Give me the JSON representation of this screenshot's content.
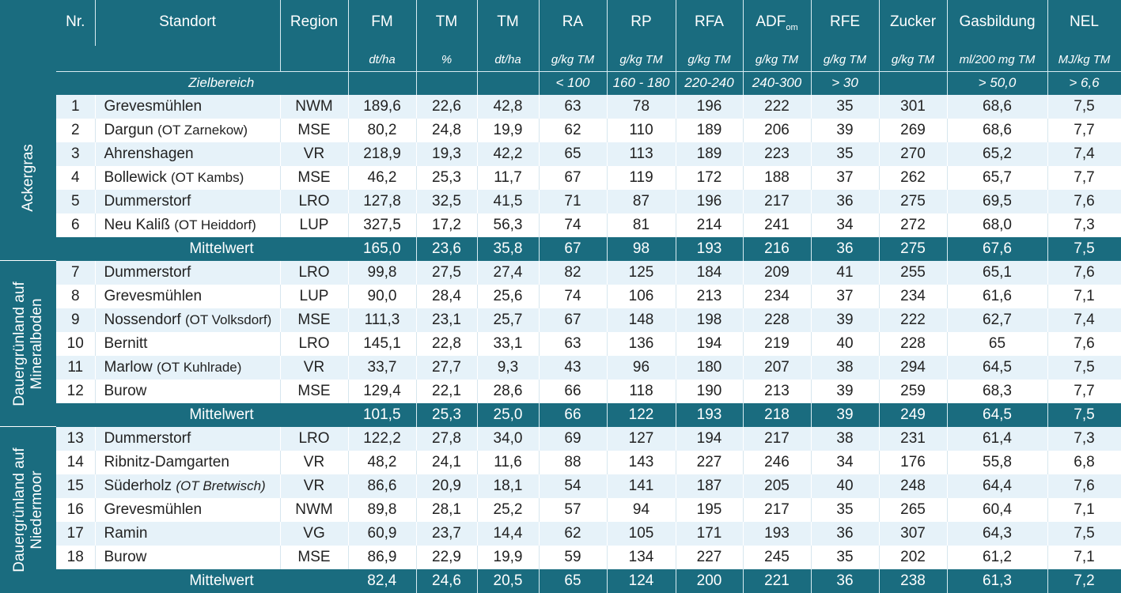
{
  "headers": {
    "nr": "Nr.",
    "standort": "Standort",
    "region": "Region",
    "fm": "FM",
    "tm1": "TM",
    "tm2": "TM",
    "ra": "RA",
    "rp": "RP",
    "rfa": "RFA",
    "adf": "ADF",
    "adf_sub": "om",
    "rfe": "RFE",
    "zucker": "Zucker",
    "gas": "Gasbildung",
    "nel": "NEL"
  },
  "units": {
    "fm": "dt/ha",
    "tm1": "%",
    "tm2": "dt/ha",
    "ra": "g/kg TM",
    "rp": "g/kg TM",
    "rfa": "g/kg TM",
    "adf": "g/kg TM",
    "rfe": "g/kg TM",
    "zucker": "g/kg TM",
    "gas": "ml/200 mg TM",
    "nel": "MJ/kg TM"
  },
  "zielbereich": {
    "label": "Zielbereich",
    "ra": "< 100",
    "rp": "160 - 180",
    "rfa": "220-240",
    "adf": "240-300",
    "rfe": "> 30",
    "gas": "> 50,0",
    "nel": "> 6,6"
  },
  "mittelwert_label": "Mittelwert",
  "groups": [
    {
      "name": "Ackergras",
      "rows": [
        {
          "nr": "1",
          "ort": "Grevesmühlen",
          "ot": "",
          "region": "NWM",
          "fm": "189,6",
          "tm1": "22,6",
          "tm2": "42,8",
          "ra": "63",
          "rp": "78",
          "rfa": "196",
          "adf": "222",
          "rfe": "35",
          "zucker": "301",
          "gas": "68,6",
          "nel": "7,5"
        },
        {
          "nr": "2",
          "ort": "Dargun",
          "ot": "(OT Zarnekow)",
          "region": "MSE",
          "fm": "80,2",
          "tm1": "24,8",
          "tm2": "19,9",
          "ra": "62",
          "rp": "110",
          "rfa": "189",
          "adf": "206",
          "rfe": "39",
          "zucker": "269",
          "gas": "68,6",
          "nel": "7,7"
        },
        {
          "nr": "3",
          "ort": "Ahrenshagen",
          "ot": "",
          "region": "VR",
          "fm": "218,9",
          "tm1": "19,3",
          "tm2": "42,2",
          "ra": "65",
          "rp": "113",
          "rfa": "189",
          "adf": "223",
          "rfe": "35",
          "zucker": "270",
          "gas": "65,2",
          "nel": "7,4"
        },
        {
          "nr": "4",
          "ort": "Bollewick",
          "ot": "(OT Kambs)",
          "region": "MSE",
          "fm": "46,2",
          "tm1": "25,3",
          "tm2": "11,7",
          "ra": "67",
          "rp": "119",
          "rfa": "172",
          "adf": "188",
          "rfe": "37",
          "zucker": "262",
          "gas": "65,7",
          "nel": "7,7"
        },
        {
          "nr": "5",
          "ort": "Dummerstorf",
          "ot": "",
          "region": "LRO",
          "fm": "127,8",
          "tm1": "32,5",
          "tm2": "41,5",
          "ra": "71",
          "rp": "87",
          "rfa": "196",
          "adf": "217",
          "rfe": "36",
          "zucker": "275",
          "gas": "69,5",
          "nel": "7,6"
        },
        {
          "nr": "6",
          "ort": "Neu Kaliß",
          "ot": "(OT Heiddorf)",
          "region": "LUP",
          "fm": "327,5",
          "tm1": "17,2",
          "tm2": "56,3",
          "ra": "74",
          "rp": "81",
          "rfa": "214",
          "adf": "241",
          "rfe": "34",
          "zucker": "272",
          "gas": "68,0",
          "nel": "7,3"
        }
      ],
      "mw": {
        "fm": "165,0",
        "tm1": "23,6",
        "tm2": "35,8",
        "ra": "67",
        "rp": "98",
        "rfa": "193",
        "adf": "216",
        "rfe": "36",
        "zucker": "275",
        "gas": "67,6",
        "nel": "7,5"
      }
    },
    {
      "name": "Dauergrünland auf\nMineralboden",
      "rows": [
        {
          "nr": "7",
          "ort": "Dummerstorf",
          "ot": "",
          "region": "LRO",
          "fm": "99,8",
          "tm1": "27,5",
          "tm2": "27,4",
          "ra": "82",
          "rp": "125",
          "rfa": "184",
          "adf": "209",
          "rfe": "41",
          "zucker": "255",
          "gas": "65,1",
          "nel": "7,6"
        },
        {
          "nr": "8",
          "ort": "Grevesmühlen",
          "ot": "",
          "region": "LUP",
          "fm": "90,0",
          "tm1": "28,4",
          "tm2": "25,6",
          "ra": "74",
          "rp": "106",
          "rfa": "213",
          "adf": "234",
          "rfe": "37",
          "zucker": "234",
          "gas": "61,6",
          "nel": "7,1"
        },
        {
          "nr": "9",
          "ort": "Nossendorf",
          "ot": "(OT Volksdorf)",
          "region": "MSE",
          "fm": "111,3",
          "tm1": "23,1",
          "tm2": "25,7",
          "ra": "67",
          "rp": "148",
          "rfa": "198",
          "adf": "228",
          "rfe": "39",
          "zucker": "222",
          "gas": "62,7",
          "nel": "7,4"
        },
        {
          "nr": "10",
          "ort": "Bernitt",
          "ot": "",
          "region": "LRO",
          "fm": "145,1",
          "tm1": "22,8",
          "tm2": "33,1",
          "ra": "63",
          "rp": "136",
          "rfa": "194",
          "adf": "219",
          "rfe": "40",
          "zucker": "228",
          "gas": "65",
          "nel": "7,6"
        },
        {
          "nr": "11",
          "ort": "Marlow",
          "ot": "(OT Kuhlrade)",
          "region": "VR",
          "fm": "33,7",
          "tm1": "27,7",
          "tm2": "9,3",
          "ra": "43",
          "rp": "96",
          "rfa": "180",
          "adf": "207",
          "rfe": "38",
          "zucker": "294",
          "gas": "64,5",
          "nel": "7,5"
        },
        {
          "nr": "12",
          "ort": "Burow",
          "ot": "",
          "region": "MSE",
          "fm": "129,4",
          "tm1": "22,1",
          "tm2": "28,6",
          "ra": "66",
          "rp": "118",
          "rfa": "190",
          "adf": "213",
          "rfe": "39",
          "zucker": "259",
          "gas": "68,3",
          "nel": "7,7"
        }
      ],
      "mw": {
        "fm": "101,5",
        "tm1": "25,3",
        "tm2": "25,0",
        "ra": "66",
        "rp": "122",
        "rfa": "193",
        "adf": "218",
        "rfe": "39",
        "zucker": "249",
        "gas": "64,5",
        "nel": "7,5"
      }
    },
    {
      "name": "Dauergrünland auf\nNiedermoor",
      "rows": [
        {
          "nr": "13",
          "ort": "Dummerstorf",
          "ot": "",
          "region": "LRO",
          "fm": "122,2",
          "tm1": "27,8",
          "tm2": "34,0",
          "ra": "69",
          "rp": "127",
          "rfa": "194",
          "adf": "217",
          "rfe": "38",
          "zucker": "231",
          "gas": "61,4",
          "nel": "7,3"
        },
        {
          "nr": "14",
          "ort": "Ribnitz-Damgarten",
          "ot": "",
          "region": "VR",
          "fm": "48,2",
          "tm1": "24,1",
          "tm2": "11,6",
          "ra": "88",
          "rp": "143",
          "rfa": "227",
          "adf": "246",
          "rfe": "34",
          "zucker": "176",
          "gas": "55,8",
          "nel": "6,8"
        },
        {
          "nr": "15",
          "ort": "Süderholz",
          "ot": "(OT Bretwisch)",
          "ot_italic": true,
          "region": "VR",
          "fm": "86,6",
          "tm1": "20,9",
          "tm2": "18,1",
          "ra": "54",
          "rp": "141",
          "rfa": "187",
          "adf": "205",
          "rfe": "40",
          "zucker": "248",
          "gas": "64,4",
          "nel": "7,6"
        },
        {
          "nr": "16",
          "ort": "Grevesmühlen",
          "ot": "",
          "region": "NWM",
          "fm": "89,8",
          "tm1": "28,1",
          "tm2": "25,2",
          "ra": "57",
          "rp": "94",
          "rfa": "195",
          "adf": "217",
          "rfe": "35",
          "zucker": "265",
          "gas": "60,4",
          "nel": "7,1"
        },
        {
          "nr": "17",
          "ort": "Ramin",
          "ot": "",
          "region": "VG",
          "fm": "60,9",
          "tm1": "23,7",
          "tm2": "14,4",
          "ra": "62",
          "rp": "105",
          "rfa": "171",
          "adf": "193",
          "rfe": "36",
          "zucker": "307",
          "gas": "64,3",
          "nel": "7,5"
        },
        {
          "nr": "18",
          "ort": "Burow",
          "ot": "",
          "region": "MSE",
          "fm": "86,9",
          "tm1": "22,9",
          "tm2": "19,9",
          "ra": "59",
          "rp": "134",
          "rfa": "227",
          "adf": "245",
          "rfe": "35",
          "zucker": "202",
          "gas": "61,2",
          "nel": "7,1"
        }
      ],
      "mw": {
        "fm": "82,4",
        "tm1": "24,6",
        "tm2": "20,5",
        "ra": "65",
        "rp": "124",
        "rfa": "200",
        "adf": "221",
        "rfe": "36",
        "zucker": "238",
        "gas": "61,3",
        "nel": "7,2"
      }
    }
  ],
  "colors": {
    "header": "#1a6c7f",
    "row_alt": "#e6f2f9",
    "row": "#ffffff"
  }
}
